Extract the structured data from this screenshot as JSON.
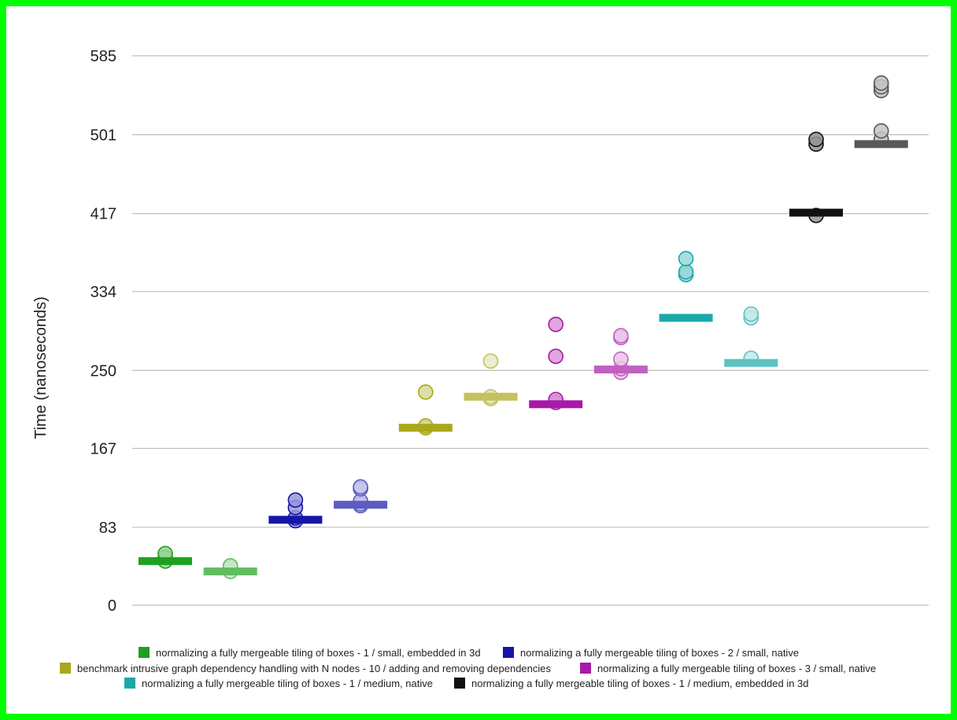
{
  "chart_data": {
    "type": "scatter",
    "ylabel": "Time (nanoseconds)",
    "yticks": [
      0,
      83,
      167,
      250,
      334,
      417,
      501,
      585
    ],
    "ylim": [
      0,
      585
    ],
    "grid": true,
    "legend_position": "bottom",
    "legend": [
      {
        "label": "normalizing a fully mergeable tiling of boxes - 1 / small, embedded in 3d",
        "color": "#1fa01f"
      },
      {
        "label": "normalizing a fully mergeable tiling of boxes - 2 / small, native",
        "color": "#1515a8"
      },
      {
        "label": "benchmark intrusive graph dependency handling with N nodes - 10 / adding and removing dependencies",
        "color": "#a8a81a"
      },
      {
        "label": "normalizing a fully mergeable tiling of boxes - 3 / small, native",
        "color": "#a81aa8"
      },
      {
        "label": "normalizing a fully mergeable tiling of boxes - 1 / medium, native",
        "color": "#1aa8a8"
      },
      {
        "label": "normalizing a fully mergeable tiling of boxes - 1 / medium, embedded in 3d",
        "color": "#111111"
      }
    ],
    "groups": [
      {
        "series": 0,
        "variant": "dark",
        "median": 47,
        "points": [
          47,
          51,
          55
        ]
      },
      {
        "series": 0,
        "variant": "light",
        "median": 36,
        "points": [
          36,
          40,
          42
        ]
      },
      {
        "series": 1,
        "variant": "dark",
        "median": 91,
        "points": [
          90,
          93,
          104,
          112
        ]
      },
      {
        "series": 1,
        "variant": "light",
        "median": 107,
        "points": [
          106,
          108,
          111,
          124,
          126
        ]
      },
      {
        "series": 2,
        "variant": "dark",
        "median": 189,
        "points": [
          189,
          191,
          227
        ]
      },
      {
        "series": 2,
        "variant": "light",
        "median": 222,
        "points": [
          220,
          222,
          260
        ]
      },
      {
        "series": 3,
        "variant": "dark",
        "median": 214,
        "points": [
          216,
          219,
          265,
          299
        ]
      },
      {
        "series": 3,
        "variant": "light",
        "median": 251,
        "points": [
          248,
          252,
          262,
          285,
          287
        ]
      },
      {
        "series": 4,
        "variant": "dark",
        "median": 306,
        "points": [
          352,
          355,
          369
        ]
      },
      {
        "series": 4,
        "variant": "light",
        "median": 258,
        "points": [
          263,
          306,
          310
        ]
      },
      {
        "series": 5,
        "variant": "dark",
        "median": 418,
        "points": [
          415,
          491,
          496
        ]
      },
      {
        "series": 5,
        "variant": "light",
        "median": 491,
        "points": [
          496,
          505,
          548,
          552,
          556
        ]
      }
    ]
  }
}
